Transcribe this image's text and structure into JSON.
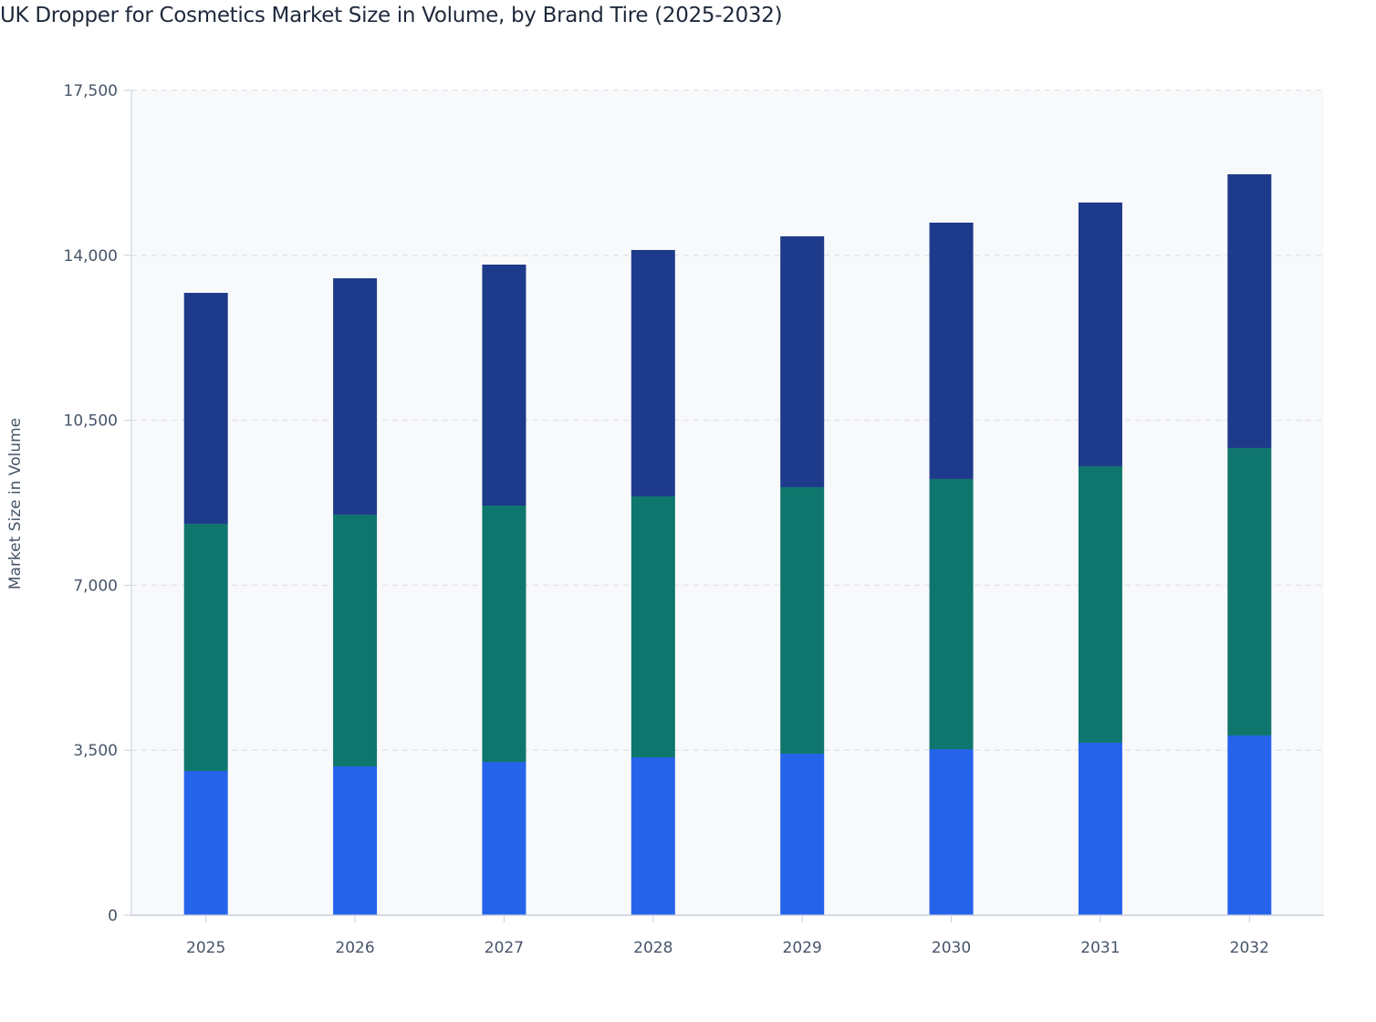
{
  "chart_data": {
    "type": "bar",
    "stacked": true,
    "title": "UK Dropper for Cosmetics Market Size in Volume, by Brand Tire (2025-2032)",
    "xlabel": "",
    "ylabel": "Market Size in Volume",
    "ylim": [
      0,
      17500
    ],
    "yticks": [
      "0",
      "3,500",
      "7,000",
      "10,500",
      "14,000",
      "17,500"
    ],
    "ytick_values": [
      0,
      3500,
      7000,
      10500,
      14000,
      17500
    ],
    "grid": true,
    "legend": "none",
    "categories": [
      "2025",
      "2026",
      "2027",
      "2028",
      "2029",
      "2030",
      "2031",
      "2032"
    ],
    "series": [
      {
        "color": "#2563eb",
        "values": [
          3059,
          3156,
          3252,
          3349,
          3427,
          3523,
          3659,
          3814
        ]
      },
      {
        "color": "#0f766e",
        "values": [
          5246,
          5343,
          5440,
          5537,
          5653,
          5731,
          5866,
          6098
        ]
      },
      {
        "color": "#1e3a8a",
        "values": [
          4899,
          5014,
          5111,
          5227,
          5323,
          5439,
          5595,
          5807
        ]
      }
    ]
  }
}
